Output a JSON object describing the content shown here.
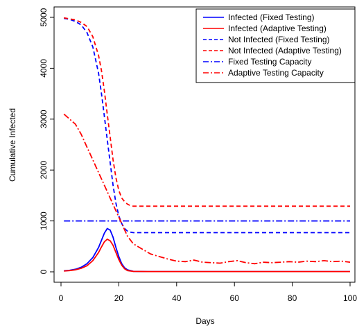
{
  "chart_data": {
    "type": "line",
    "xlabel": "Days",
    "ylabel": "Cumulative Infected",
    "xlim": [
      0,
      100
    ],
    "ylim": [
      -80,
      5200
    ],
    "x_ticks": [
      "0",
      "20",
      "40",
      "60",
      "80",
      "100"
    ],
    "y_ticks": [
      "0",
      "1000",
      "2000",
      "3000",
      "4000",
      "5000"
    ],
    "grid": false,
    "legend_position": "top-right",
    "colors": {
      "fixed": "#0000FF",
      "adaptive": "#FF0000"
    },
    "series": [
      {
        "name": "Infected (Fixed Testing)",
        "color": "#0000FF",
        "style": "solid",
        "points": [
          [
            1,
            20
          ],
          [
            3,
            30
          ],
          [
            5,
            50
          ],
          [
            7,
            90
          ],
          [
            9,
            160
          ],
          [
            11,
            280
          ],
          [
            13,
            480
          ],
          [
            14,
            620
          ],
          [
            15,
            760
          ],
          [
            16,
            850
          ],
          [
            17,
            820
          ],
          [
            18,
            680
          ],
          [
            19,
            480
          ],
          [
            20,
            300
          ],
          [
            21,
            160
          ],
          [
            22,
            80
          ],
          [
            23,
            40
          ],
          [
            25,
            10
          ],
          [
            30,
            5
          ],
          [
            40,
            5
          ],
          [
            60,
            5
          ],
          [
            80,
            5
          ],
          [
            100,
            5
          ]
        ]
      },
      {
        "name": "Infected (Adaptive Testing)",
        "color": "#FF0000",
        "style": "solid",
        "points": [
          [
            1,
            15
          ],
          [
            3,
            25
          ],
          [
            5,
            40
          ],
          [
            7,
            70
          ],
          [
            9,
            120
          ],
          [
            11,
            220
          ],
          [
            13,
            380
          ],
          [
            14,
            490
          ],
          [
            15,
            590
          ],
          [
            16,
            640
          ],
          [
            17,
            610
          ],
          [
            18,
            520
          ],
          [
            19,
            380
          ],
          [
            20,
            240
          ],
          [
            21,
            130
          ],
          [
            22,
            60
          ],
          [
            23,
            25
          ],
          [
            25,
            8
          ],
          [
            30,
            5
          ],
          [
            40,
            5
          ],
          [
            60,
            5
          ],
          [
            80,
            5
          ],
          [
            100,
            5
          ]
        ]
      },
      {
        "name": "Not Infected (Fixed Testing)",
        "color": "#0000FF",
        "style": "dashed",
        "points": [
          [
            1,
            4980
          ],
          [
            3,
            4960
          ],
          [
            5,
            4920
          ],
          [
            7,
            4850
          ],
          [
            9,
            4700
          ],
          [
            11,
            4420
          ],
          [
            13,
            3900
          ],
          [
            14,
            3500
          ],
          [
            15,
            3050
          ],
          [
            16,
            2600
          ],
          [
            17,
            2150
          ],
          [
            18,
            1700
          ],
          [
            19,
            1350
          ],
          [
            20,
            1100
          ],
          [
            21,
            950
          ],
          [
            22,
            850
          ],
          [
            23,
            800
          ],
          [
            24,
            780
          ],
          [
            25,
            770
          ],
          [
            30,
            770
          ],
          [
            50,
            770
          ],
          [
            70,
            770
          ],
          [
            100,
            770
          ]
        ]
      },
      {
        "name": "Not Infected (Adaptive Testing)",
        "color": "#FF0000",
        "style": "dashed",
        "points": [
          [
            1,
            4990
          ],
          [
            3,
            4970
          ],
          [
            5,
            4950
          ],
          [
            7,
            4900
          ],
          [
            9,
            4820
          ],
          [
            11,
            4620
          ],
          [
            13,
            4250
          ],
          [
            14,
            3950
          ],
          [
            15,
            3550
          ],
          [
            16,
            3100
          ],
          [
            17,
            2650
          ],
          [
            18,
            2200
          ],
          [
            19,
            1850
          ],
          [
            20,
            1600
          ],
          [
            21,
            1450
          ],
          [
            22,
            1380
          ],
          [
            23,
            1330
          ],
          [
            24,
            1300
          ],
          [
            25,
            1290
          ],
          [
            30,
            1290
          ],
          [
            50,
            1290
          ],
          [
            70,
            1290
          ],
          [
            100,
            1290
          ]
        ]
      },
      {
        "name": "Fixed Testing Capacity",
        "color": "#0000FF",
        "style": "dashdot",
        "points": [
          [
            1,
            1000
          ],
          [
            100,
            1000
          ]
        ]
      },
      {
        "name": "Adaptive Testing Capacity",
        "color": "#FF0000",
        "style": "dashdot",
        "points": [
          [
            1,
            3100
          ],
          [
            3,
            3000
          ],
          [
            5,
            2900
          ],
          [
            7,
            2700
          ],
          [
            9,
            2450
          ],
          [
            11,
            2200
          ],
          [
            13,
            1950
          ],
          [
            15,
            1700
          ],
          [
            17,
            1450
          ],
          [
            19,
            1200
          ],
          [
            21,
            950
          ],
          [
            23,
            700
          ],
          [
            25,
            550
          ],
          [
            28,
            450
          ],
          [
            31,
            350
          ],
          [
            34,
            300
          ],
          [
            37,
            250
          ],
          [
            40,
            210
          ],
          [
            43,
            200
          ],
          [
            46,
            230
          ],
          [
            49,
            190
          ],
          [
            52,
            180
          ],
          [
            55,
            170
          ],
          [
            58,
            200
          ],
          [
            61,
            220
          ],
          [
            64,
            180
          ],
          [
            67,
            160
          ],
          [
            70,
            190
          ],
          [
            73,
            180
          ],
          [
            76,
            190
          ],
          [
            79,
            200
          ],
          [
            82,
            190
          ],
          [
            85,
            210
          ],
          [
            88,
            200
          ],
          [
            91,
            220
          ],
          [
            94,
            200
          ],
          [
            97,
            210
          ],
          [
            100,
            190
          ]
        ]
      }
    ]
  }
}
